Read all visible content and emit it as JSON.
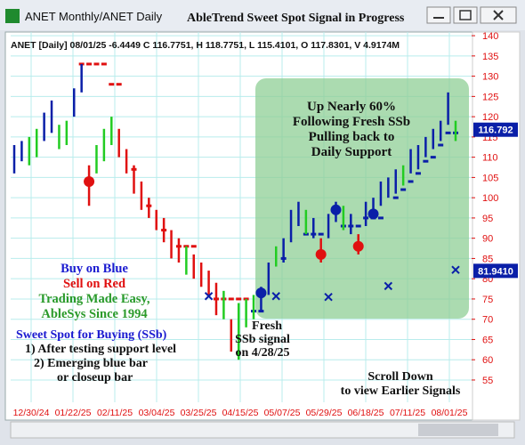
{
  "window": {
    "title": "ANET Monthly/ANET Daily",
    "heading": "AbleTrend Sweet Spot Signal in Progress"
  },
  "chart_data": {
    "type": "hilo",
    "info": "ANET [Daily] 08/01/25 -6.4449 C 116.7751, H 118.7751, L 115.4101, O 117.8301, V 4.9174M",
    "categories": [
      "12/30/24",
      "01/22/25",
      "02/11/25",
      "03/04/25",
      "03/25/25",
      "04/15/25",
      "05/07/25",
      "05/29/25",
      "06/18/25",
      "07/11/25",
      "08/01/25"
    ],
    "ylim": [
      49.5,
      140.9
    ],
    "yticks": [
      55,
      60,
      65,
      70,
      75,
      80,
      85,
      90,
      95,
      100,
      105,
      110,
      115,
      120,
      125,
      130,
      135,
      140
    ],
    "grid": true,
    "bars": [
      {
        "low": 106,
        "high": 113,
        "color": "#0a1fa8"
      },
      {
        "low": 109,
        "high": 114,
        "color": "#0a1fa8"
      },
      {
        "low": 108,
        "high": 115,
        "color": "#22cc22"
      },
      {
        "low": 110,
        "high": 117,
        "color": "#22cc22"
      },
      {
        "low": 114,
        "high": 121,
        "color": "#0a1fa8"
      },
      {
        "low": 116,
        "high": 124,
        "color": "#0a1fa8"
      },
      {
        "low": 112,
        "high": 118,
        "color": "#22cc22"
      },
      {
        "low": 113,
        "high": 119,
        "color": "#22cc22"
      },
      {
        "low": 120,
        "high": 127,
        "color": "#0a1fa8"
      },
      {
        "low": 126,
        "high": 133,
        "color": "#0a1fa8",
        "stop": 133,
        "stop_color": "#e01010"
      },
      {
        "low": 98,
        "high": 108,
        "color": "#e01010",
        "signal": 104,
        "stop": 133,
        "stop_color": "#e01010"
      },
      {
        "low": 106,
        "high": 113,
        "color": "#22cc22",
        "stop": 133,
        "stop_color": "#e01010"
      },
      {
        "low": 109,
        "high": 117,
        "color": "#22cc22",
        "stop": 133,
        "stop_color": "#e01010"
      },
      {
        "low": 113,
        "high": 120,
        "color": "#22cc22",
        "stop": 128,
        "stop_color": "#e01010"
      },
      {
        "low": 110,
        "high": 117,
        "color": "#e01010",
        "stop": 128,
        "stop_color": "#e01010"
      },
      {
        "low": 106,
        "high": 112,
        "color": "#e01010"
      },
      {
        "low": 101,
        "high": 108,
        "color": "#e01010",
        "stop": 107,
        "stop_color": "#e01010"
      },
      {
        "low": 97,
        "high": 104,
        "color": "#e01010"
      },
      {
        "low": 95,
        "high": 100,
        "color": "#e01010",
        "stop": 98,
        "stop_color": "#e01010"
      },
      {
        "low": 92,
        "high": 97,
        "color": "#e01010"
      },
      {
        "low": 89,
        "high": 95,
        "color": "#e01010",
        "stop": 92,
        "stop_color": "#e01010"
      },
      {
        "low": 85,
        "high": 92,
        "color": "#e01010"
      },
      {
        "low": 84,
        "high": 90,
        "color": "#e01010",
        "stop": 88,
        "stop_color": "#e01010"
      },
      {
        "low": 81,
        "high": 88,
        "color": "#22cc22",
        "stop": 88,
        "stop_color": "#e01010"
      },
      {
        "low": 80,
        "high": 86,
        "color": "#e01010",
        "stop": 88,
        "stop_color": "#e01010"
      },
      {
        "low": 78,
        "high": 84,
        "color": "#e01010"
      },
      {
        "low": 76,
        "high": 82,
        "color": "#e01010",
        "cross": 75.7
      },
      {
        "low": 71,
        "high": 79,
        "color": "#e01010",
        "stop": 75,
        "stop_color": "#e01010"
      },
      {
        "low": 70,
        "high": 77,
        "color": "#22cc22",
        "stop": 75,
        "stop_color": "#e01010"
      },
      {
        "low": 62,
        "high": 70,
        "color": "#e01010",
        "stop": 75,
        "stop_color": "#e01010"
      },
      {
        "low": 60,
        "high": 74,
        "color": "#22cc22",
        "stop": 75,
        "stop_color": "#e01010"
      },
      {
        "low": 68,
        "high": 75,
        "color": "#22cc22",
        "stop": 75,
        "stop_color": "#e01010"
      },
      {
        "low": 70,
        "high": 76,
        "color": "#22cc22",
        "stop": 72,
        "stop_color": "#0a1fa8"
      },
      {
        "low": 72,
        "high": 78,
        "color": "#0a1fa8",
        "signal": 76.5,
        "stop": 72,
        "stop_color": "#0a1fa8"
      },
      {
        "low": 76,
        "high": 84,
        "color": "#0a1fa8"
      },
      {
        "low": 83,
        "high": 88,
        "color": "#22cc22",
        "cross": 75.7
      },
      {
        "low": 84,
        "high": 90,
        "color": "#0a1fa8",
        "stop": 85,
        "stop_color": "#0a1fa8"
      },
      {
        "low": 89,
        "high": 97,
        "color": "#0a1fa8"
      },
      {
        "low": 93,
        "high": 99,
        "color": "#0a1fa8"
      },
      {
        "low": 91,
        "high": 97,
        "color": "#22cc22",
        "stop": 91,
        "stop_color": "#0a1fa8"
      },
      {
        "low": 90,
        "high": 95,
        "color": "#0a1fa8",
        "stop": 91,
        "stop_color": "#0a1fa8"
      },
      {
        "low": 84,
        "high": 90,
        "color": "#e01010",
        "signal": 86,
        "stop": 91,
        "stop_color": "#0a1fa8"
      },
      {
        "low": 90,
        "high": 96,
        "color": "#0a1fa8",
        "cross": 75.5
      },
      {
        "low": 94,
        "high": 99,
        "color": "#0a1fa8",
        "signal": 97
      },
      {
        "low": 92,
        "high": 98,
        "color": "#22cc22",
        "stop": 93,
        "stop_color": "#0a1fa8"
      },
      {
        "low": 91,
        "high": 96,
        "color": "#0a1fa8",
        "stop": 93,
        "stop_color": "#0a1fa8"
      },
      {
        "low": 86,
        "high": 91,
        "color": "#e01010",
        "signal": 88,
        "stop": 93,
        "stop_color": "#0a1fa8"
      },
      {
        "low": 93,
        "high": 99,
        "color": "#0a1fa8",
        "stop": 95,
        "stop_color": "#0a1fa8"
      },
      {
        "low": 95,
        "high": 100,
        "color": "#0a1fa8",
        "signal": 96,
        "stop": 95,
        "stop_color": "#0a1fa8"
      },
      {
        "low": 98,
        "high": 104,
        "color": "#0a1fa8",
        "stop": 95,
        "stop_color": "#0a1fa8"
      },
      {
        "low": 100,
        "high": 105,
        "color": "#0a1fa8",
        "cross": 78.2
      },
      {
        "low": 101,
        "high": 107,
        "color": "#0a1fa8",
        "stop": 100,
        "stop_color": "#0a1fa8"
      },
      {
        "low": 103,
        "high": 108,
        "color": "#22cc22",
        "stop": 102,
        "stop_color": "#0a1fa8"
      },
      {
        "low": 106,
        "high": 112,
        "color": "#0a1fa8",
        "stop": 104,
        "stop_color": "#0a1fa8"
      },
      {
        "low": 107,
        "high": 113,
        "color": "#0a1fa8",
        "stop": 106,
        "stop_color": "#0a1fa8"
      },
      {
        "low": 110,
        "high": 115,
        "color": "#0a1fa8",
        "stop": 109,
        "stop_color": "#0a1fa8"
      },
      {
        "low": 112,
        "high": 117,
        "color": "#0a1fa8",
        "stop": 110,
        "stop_color": "#0a1fa8"
      },
      {
        "low": 114,
        "high": 119,
        "color": "#0a1fa8",
        "stop": 113,
        "stop_color": "#0a1fa8"
      },
      {
        "low": 118,
        "high": 126,
        "color": "#0a1fa8",
        "stop": 116,
        "stop_color": "#0a1fa8"
      },
      {
        "low": 114,
        "high": 119,
        "color": "#22cc22",
        "cross": 82.2,
        "stop": 116,
        "stop_color": "#0a1fa8"
      }
    ],
    "price_markers": [
      {
        "value": 116.792,
        "color": "#0a1fa8"
      },
      {
        "value": 81.941,
        "label": "81.9410",
        "color": "#0a1fa8"
      }
    ],
    "annotations": {
      "box": [
        "Up Nearly 60%",
        "Following Fresh SSb",
        "Pulling back to",
        "Daily Support"
      ],
      "legend": [
        {
          "text": "Buy on Blue",
          "color": "#1a1ad0"
        },
        {
          "text": "Sell on Red",
          "color": "#e01010"
        },
        {
          "text": "Trading Made Easy,",
          "color": "#2a9a2a"
        },
        {
          "text": "AbleSys Since 1994",
          "color": "#2a9a2a"
        }
      ],
      "sweet_spot": [
        "Sweet Spot for Buying (SSb)",
        "1) After testing support level",
        "2) Emerging blue bar",
        "or closeup bar"
      ],
      "fresh": [
        "Fresh",
        "SSb signal",
        "on 4/28/25"
      ],
      "scroll": [
        "Scroll Down",
        "to view Earlier Signals"
      ]
    }
  }
}
